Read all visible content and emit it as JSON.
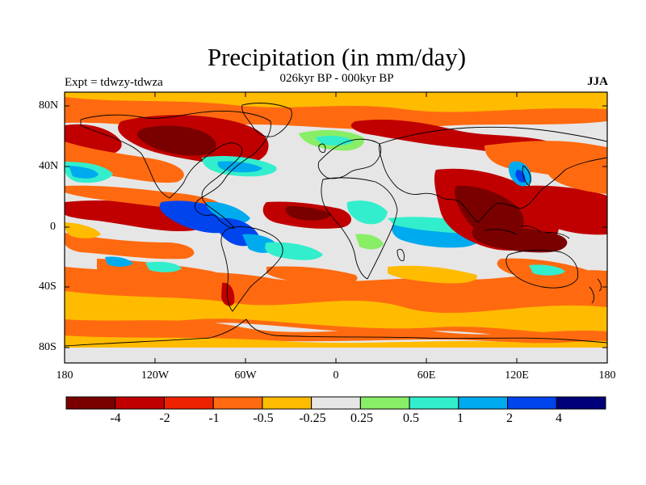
{
  "title": "Precipitation (in mm/day)",
  "subtitle": "026kyr BP - 000kyr BP",
  "left_label": "Expt = tdwzy-tdwza",
  "right_label": "JJA",
  "lat_ticks": [
    "80N",
    "40N",
    "0",
    "40S",
    "80S"
  ],
  "lon_ticks": [
    "180",
    "120W",
    "60W",
    "0",
    "60E",
    "120E",
    "180"
  ],
  "colorbar": {
    "colors": [
      "#7a0000",
      "#c00000",
      "#ee2200",
      "#ff6a10",
      "#ffbb00",
      "#e6e6e6",
      "#88ee66",
      "#33eecc",
      "#00aaee",
      "#0044ee",
      "#00007a"
    ],
    "labels": [
      "-4",
      "-2",
      "-1",
      "-0.5",
      "-0.25",
      "0.25",
      "0.5",
      "1",
      "2",
      "4"
    ]
  },
  "colors": {
    "land_outline": "#000000",
    "frame": "#000000"
  }
}
